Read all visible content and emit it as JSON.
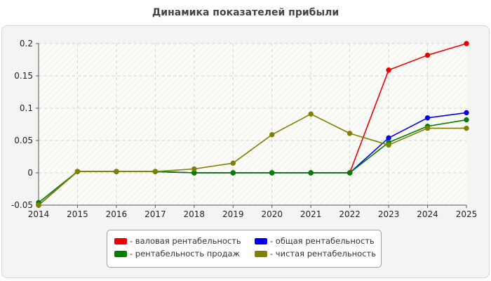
{
  "page": {
    "title": "Динамика показателей прибыли"
  },
  "chart_data": {
    "type": "line",
    "title": "Динамика показателей прибыли",
    "x": [
      "2014",
      "2015",
      "2016",
      "2017",
      "2018",
      "2019",
      "2020",
      "2021",
      "2022",
      "2023",
      "2024",
      "2025"
    ],
    "yticks": [
      "-0.05",
      "0",
      "0.05",
      "0.1",
      "0.15",
      "0.2"
    ],
    "ylim": [
      -0.05,
      0.2
    ],
    "grid": true,
    "legend_position": "bottom",
    "series": [
      {
        "name": "- валовая рентабельность",
        "color": "#ee0000",
        "values": [
          -0.05,
          0.002,
          0.002,
          0.002,
          0,
          0,
          0,
          0,
          0,
          0.159,
          0.182,
          0.2
        ]
      },
      {
        "name": "- общая рентабельность",
        "color": "#0000ee",
        "values": [
          -0.05,
          0.002,
          0.002,
          0.002,
          0,
          0,
          0,
          0,
          0,
          0.054,
          0.085,
          0.093
        ]
      },
      {
        "name": "- рентабельность продаж",
        "color": "#008000",
        "values": [
          -0.046,
          0.002,
          0.002,
          0.002,
          0,
          0,
          0,
          0,
          0,
          0.047,
          0.072,
          0.082
        ]
      },
      {
        "name": "- чистая рентабельность",
        "color": "#808000",
        "values": [
          -0.05,
          0.002,
          0.002,
          0.002,
          0.006,
          0.015,
          0.059,
          0.091,
          0.061,
          0.043,
          0.069,
          0.069
        ]
      }
    ]
  }
}
